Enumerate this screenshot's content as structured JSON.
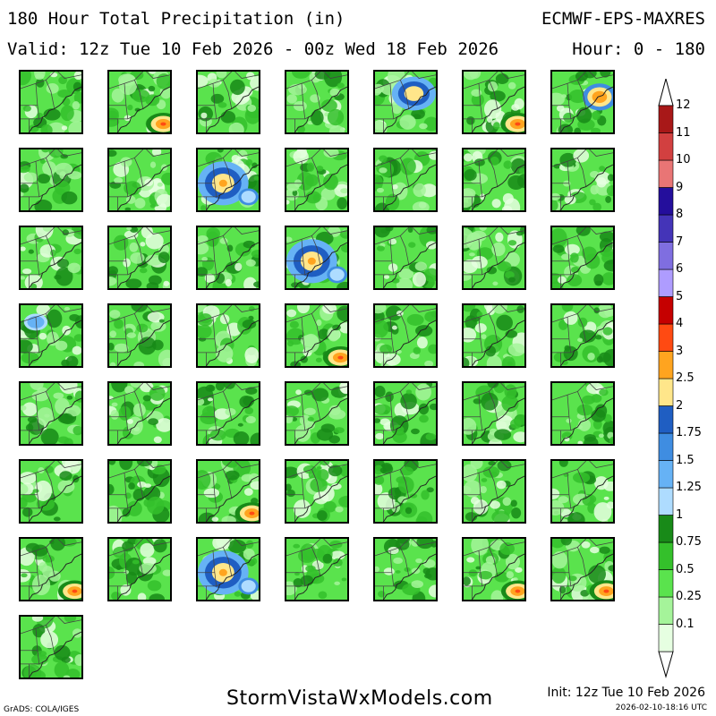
{
  "header": {
    "title": "180 Hour Total Precipitation (in)",
    "model": "ECMWF-EPS-MAXRES",
    "valid": "Valid: 12z Tue 10 Feb 2026 - 00z Wed 18 Feb 2026",
    "hours": "Hour: 0 - 180"
  },
  "legend": {
    "levels": [
      {
        "label": "0.1",
        "color": "#e6ffe1"
      },
      {
        "label": "0.25",
        "color": "#a5f49a"
      },
      {
        "label": "0.5",
        "color": "#5ae34d"
      },
      {
        "label": "0.75",
        "color": "#34c02b"
      },
      {
        "label": "1",
        "color": "#188a18"
      },
      {
        "label": "1.25",
        "color": "#aedcff"
      },
      {
        "label": "1.5",
        "color": "#66b2f5"
      },
      {
        "label": "1.75",
        "color": "#3f8de1"
      },
      {
        "label": "2",
        "color": "#1f5ec2"
      },
      {
        "label": "2.5",
        "color": "#ffe68a"
      },
      {
        "label": "3",
        "color": "#ffa41f"
      },
      {
        "label": "4",
        "color": "#ff4a12"
      },
      {
        "label": "5",
        "color": "#c50000"
      },
      {
        "label": "6",
        "color": "#ae9cff"
      },
      {
        "label": "7",
        "color": "#7f6ee0"
      },
      {
        "label": "8",
        "color": "#4434b8"
      },
      {
        "label": "9",
        "color": "#240e9c"
      },
      {
        "label": "10",
        "color": "#e97575"
      },
      {
        "label": "11",
        "color": "#d24040"
      },
      {
        "label": "12",
        "color": "#a81818"
      }
    ]
  },
  "members": [
    {
      "intensity": 0.2,
      "hot": "none"
    },
    {
      "intensity": 0.55,
      "hot": "se"
    },
    {
      "intensity": 0.25,
      "hot": "none"
    },
    {
      "intensity": 0.2,
      "hot": "none"
    },
    {
      "intensity": 0.6,
      "hot": "coast"
    },
    {
      "intensity": 0.55,
      "hot": "se"
    },
    {
      "intensity": 0.6,
      "hot": "ne"
    },
    {
      "intensity": 0.25,
      "hot": "none"
    },
    {
      "intensity": 0.2,
      "hot": "none"
    },
    {
      "intensity": 0.75,
      "hot": "wide"
    },
    {
      "intensity": 0.2,
      "hot": "none"
    },
    {
      "intensity": 0.2,
      "hot": "none"
    },
    {
      "intensity": 0.2,
      "hot": "none"
    },
    {
      "intensity": 0.2,
      "hot": "none"
    },
    {
      "intensity": 0.25,
      "hot": "none"
    },
    {
      "intensity": 0.15,
      "hot": "none"
    },
    {
      "intensity": 0.15,
      "hot": "none"
    },
    {
      "intensity": 0.7,
      "hot": "wide"
    },
    {
      "intensity": 0.2,
      "hot": "none"
    },
    {
      "intensity": 0.2,
      "hot": "none"
    },
    {
      "intensity": 0.2,
      "hot": "none"
    },
    {
      "intensity": 0.35,
      "hot": "blue"
    },
    {
      "intensity": 0.15,
      "hot": "none"
    },
    {
      "intensity": 0.15,
      "hot": "none"
    },
    {
      "intensity": 0.55,
      "hot": "se"
    },
    {
      "intensity": 0.2,
      "hot": "none"
    },
    {
      "intensity": 0.15,
      "hot": "none"
    },
    {
      "intensity": 0.3,
      "hot": "none"
    },
    {
      "intensity": 0.2,
      "hot": "none"
    },
    {
      "intensity": 0.2,
      "hot": "none"
    },
    {
      "intensity": 0.25,
      "hot": "none"
    },
    {
      "intensity": 0.2,
      "hot": "none"
    },
    {
      "intensity": 0.2,
      "hot": "none"
    },
    {
      "intensity": 0.2,
      "hot": "none"
    },
    {
      "intensity": 0.25,
      "hot": "none"
    },
    {
      "intensity": 0.2,
      "hot": "none"
    },
    {
      "intensity": 0.15,
      "hot": "none"
    },
    {
      "intensity": 0.5,
      "hot": "se"
    },
    {
      "intensity": 0.15,
      "hot": "none"
    },
    {
      "intensity": 0.2,
      "hot": "none"
    },
    {
      "intensity": 0.15,
      "hot": "none"
    },
    {
      "intensity": 0.2,
      "hot": "none"
    },
    {
      "intensity": 0.45,
      "hot": "se"
    },
    {
      "intensity": 0.2,
      "hot": "none"
    },
    {
      "intensity": 0.7,
      "hot": "wide"
    },
    {
      "intensity": 0.25,
      "hot": "none"
    },
    {
      "intensity": 0.15,
      "hot": "none"
    },
    {
      "intensity": 0.45,
      "hot": "se"
    },
    {
      "intensity": 0.5,
      "hot": "se"
    },
    {
      "intensity": 0.2,
      "hot": "none"
    }
  ],
  "footer": {
    "site": "StormVistaWxModels.com",
    "init": "Init: 12z Tue 10 Feb 2026",
    "stamp": "2026-02-10-18:16 UTC",
    "credit": "GrADS: COLA/IGES"
  }
}
